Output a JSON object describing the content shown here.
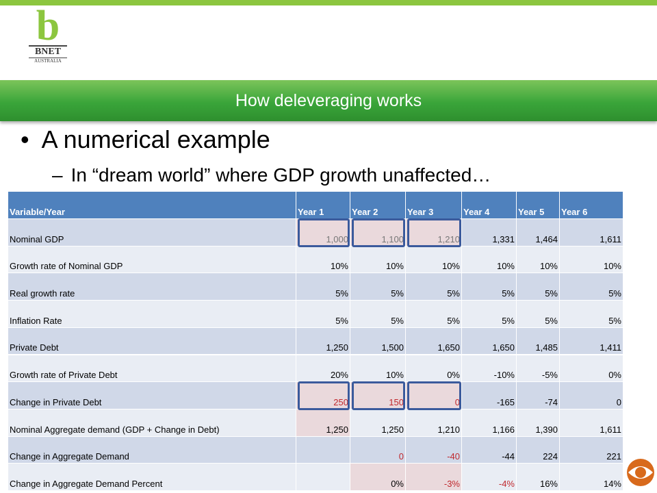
{
  "logo": {
    "letter": "b",
    "name": "BNET",
    "sub": "AUSTRALIA"
  },
  "header": {
    "title": "How deleveraging works"
  },
  "bullets": {
    "main": "A numerical example",
    "sub": "In “dream world” where GDP growth unaffected…"
  },
  "table": {
    "columns": [
      "Variable/Year",
      "Year 1",
      "Year 2",
      "Year 3",
      "Year 4",
      "Year 5",
      "Year 6"
    ],
    "rows": [
      [
        "Nominal GDP",
        "1,000",
        "1,100",
        "1,210",
        "1,331",
        "1,464",
        "1,611"
      ],
      [
        "Growth rate of Nominal GDP",
        "10%",
        "10%",
        "10%",
        "10%",
        "10%",
        "10%"
      ],
      [
        "Real growth rate",
        "5%",
        "5%",
        "5%",
        "5%",
        "5%",
        "5%"
      ],
      [
        "Inflation Rate",
        "5%",
        "5%",
        "5%",
        "5%",
        "5%",
        "5%"
      ],
      [
        "Private Debt",
        "1,250",
        "1,500",
        "1,650",
        "1,650",
        "1,485",
        "1,411"
      ],
      [
        "Growth rate of Private Debt",
        "20%",
        "10%",
        "0%",
        "-10%",
        "-5%",
        "0%"
      ],
      [
        "Change in Private Debt",
        "250",
        "150",
        "0",
        "-165",
        "-74",
        "0"
      ],
      [
        "Nominal Aggregate demand (GDP + Change in Debt)",
        "1,250",
        "1,250",
        "1,210",
        "1,166",
        "1,390",
        "1,611"
      ],
      [
        "Change in Aggregate Demand",
        null,
        "0",
        "-40",
        "-44",
        "224",
        "221"
      ],
      [
        "Change in Aggregate Demand Percent",
        null,
        "0%",
        "-3%",
        "-4%",
        "16%",
        "14%"
      ]
    ]
  }
}
